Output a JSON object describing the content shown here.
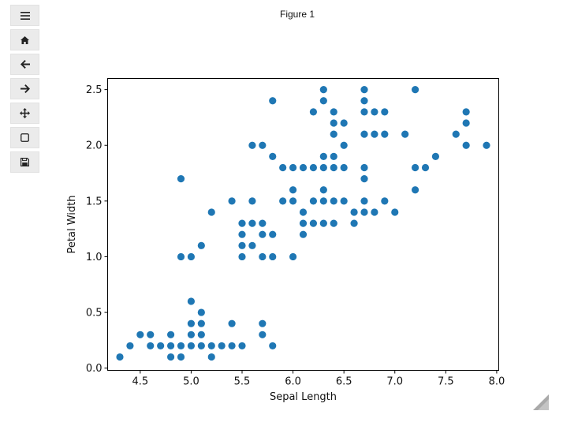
{
  "window": {
    "title": "Figure 1"
  },
  "toolbar": {
    "buttons": [
      {
        "name": "menu-button",
        "icon": "hamburger-icon"
      },
      {
        "name": "home-button",
        "icon": "home-icon"
      },
      {
        "name": "back-button",
        "icon": "arrow-left-icon"
      },
      {
        "name": "forward-button",
        "icon": "arrow-right-icon"
      },
      {
        "name": "pan-button",
        "icon": "move-icon"
      },
      {
        "name": "zoom-button",
        "icon": "zoom-rect-icon"
      },
      {
        "name": "save-button",
        "icon": "save-icon"
      }
    ]
  },
  "chart_data": {
    "type": "scatter",
    "title": "",
    "xlabel": "Sepal Length",
    "ylabel": "Petal Width",
    "xlim": [
      4.18,
      8.02
    ],
    "ylim": [
      -0.02,
      2.6
    ],
    "xticks": [
      "4.5",
      "5.0",
      "5.5",
      "6.0",
      "6.5",
      "7.0",
      "7.5",
      "8.0"
    ],
    "yticks": [
      "0.0",
      "0.5",
      "1.0",
      "1.5",
      "2.0",
      "2.5"
    ],
    "grid": false,
    "marker_color": "#1f77b4",
    "points": [
      [
        4.3,
        0.1
      ],
      [
        4.4,
        0.2
      ],
      [
        4.5,
        0.3
      ],
      [
        4.6,
        0.2
      ],
      [
        4.6,
        0.3
      ],
      [
        4.7,
        0.2
      ],
      [
        4.8,
        0.1
      ],
      [
        4.8,
        0.2
      ],
      [
        4.8,
        0.3
      ],
      [
        4.9,
        0.1
      ],
      [
        4.9,
        0.2
      ],
      [
        4.9,
        1.0
      ],
      [
        4.9,
        1.7
      ],
      [
        5.0,
        0.2
      ],
      [
        5.0,
        0.3
      ],
      [
        5.0,
        0.4
      ],
      [
        5.0,
        0.6
      ],
      [
        5.0,
        1.0
      ],
      [
        5.1,
        0.2
      ],
      [
        5.1,
        0.3
      ],
      [
        5.1,
        0.4
      ],
      [
        5.1,
        0.5
      ],
      [
        5.1,
        1.1
      ],
      [
        5.2,
        0.1
      ],
      [
        5.2,
        0.2
      ],
      [
        5.2,
        1.4
      ],
      [
        5.3,
        0.2
      ],
      [
        5.4,
        0.2
      ],
      [
        5.4,
        0.4
      ],
      [
        5.4,
        1.5
      ],
      [
        5.5,
        0.2
      ],
      [
        5.5,
        1.0
      ],
      [
        5.5,
        1.1
      ],
      [
        5.5,
        1.2
      ],
      [
        5.5,
        1.3
      ],
      [
        5.6,
        1.1
      ],
      [
        5.6,
        1.3
      ],
      [
        5.6,
        1.5
      ],
      [
        5.6,
        2.0
      ],
      [
        5.7,
        0.3
      ],
      [
        5.7,
        0.4
      ],
      [
        5.7,
        1.0
      ],
      [
        5.7,
        1.2
      ],
      [
        5.7,
        1.3
      ],
      [
        5.7,
        2.0
      ],
      [
        5.8,
        0.2
      ],
      [
        5.8,
        1.0
      ],
      [
        5.8,
        1.2
      ],
      [
        5.8,
        1.9
      ],
      [
        5.8,
        2.4
      ],
      [
        5.9,
        1.5
      ],
      [
        5.9,
        1.8
      ],
      [
        6.0,
        1.0
      ],
      [
        6.0,
        1.5
      ],
      [
        6.0,
        1.6
      ],
      [
        6.0,
        1.8
      ],
      [
        6.1,
        1.2
      ],
      [
        6.1,
        1.3
      ],
      [
        6.1,
        1.4
      ],
      [
        6.1,
        1.8
      ],
      [
        6.2,
        1.3
      ],
      [
        6.2,
        1.5
      ],
      [
        6.2,
        1.8
      ],
      [
        6.2,
        2.3
      ],
      [
        6.3,
        1.3
      ],
      [
        6.3,
        1.5
      ],
      [
        6.3,
        1.6
      ],
      [
        6.3,
        1.8
      ],
      [
        6.3,
        1.9
      ],
      [
        6.3,
        2.4
      ],
      [
        6.3,
        2.5
      ],
      [
        6.4,
        1.3
      ],
      [
        6.4,
        1.5
      ],
      [
        6.4,
        1.8
      ],
      [
        6.4,
        1.9
      ],
      [
        6.4,
        2.1
      ],
      [
        6.4,
        2.2
      ],
      [
        6.4,
        2.3
      ],
      [
        6.5,
        1.5
      ],
      [
        6.5,
        1.8
      ],
      [
        6.5,
        2.0
      ],
      [
        6.5,
        2.2
      ],
      [
        6.6,
        1.3
      ],
      [
        6.6,
        1.4
      ],
      [
        6.7,
        1.4
      ],
      [
        6.7,
        1.5
      ],
      [
        6.7,
        1.7
      ],
      [
        6.7,
        1.8
      ],
      [
        6.7,
        2.1
      ],
      [
        6.7,
        2.3
      ],
      [
        6.7,
        2.4
      ],
      [
        6.7,
        2.5
      ],
      [
        6.8,
        1.4
      ],
      [
        6.8,
        2.1
      ],
      [
        6.8,
        2.3
      ],
      [
        6.9,
        1.5
      ],
      [
        6.9,
        2.1
      ],
      [
        6.9,
        2.3
      ],
      [
        7.0,
        1.4
      ],
      [
        7.1,
        2.1
      ],
      [
        7.2,
        1.6
      ],
      [
        7.2,
        1.8
      ],
      [
        7.2,
        2.5
      ],
      [
        7.3,
        1.8
      ],
      [
        7.4,
        1.9
      ],
      [
        7.6,
        2.1
      ],
      [
        7.7,
        2.0
      ],
      [
        7.7,
        2.2
      ],
      [
        7.7,
        2.3
      ],
      [
        7.9,
        2.0
      ]
    ]
  }
}
